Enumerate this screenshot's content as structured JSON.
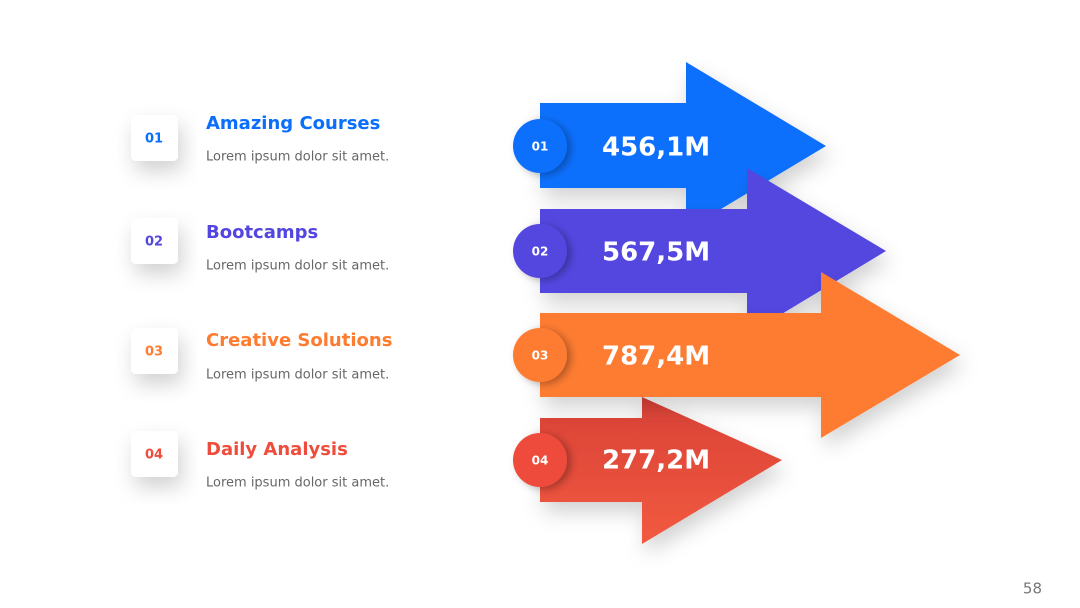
{
  "items": [
    {
      "number": "01",
      "title": "Amazing Courses",
      "text": "Lorem ipsum dolor sit amet.",
      "value": "456,1M"
    },
    {
      "number": "02",
      "title": "Bootcamps",
      "text": "Lorem ipsum dolor sit amet.",
      "value": "567,5M"
    },
    {
      "number": "03",
      "title": "Creative Solutions",
      "text": "Lorem ipsum dolor sit amet.",
      "value": "787,4M"
    },
    {
      "number": "04",
      "title": "Daily Analysis",
      "text": "Lorem ipsum dolor sit amet.",
      "value": "277,2M"
    }
  ],
  "page_number": "58"
}
